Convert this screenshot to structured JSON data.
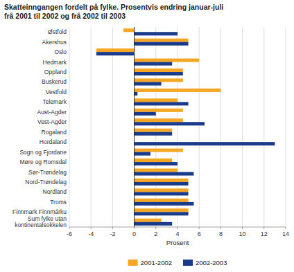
{
  "chart_data": {
    "type": "bar",
    "orientation": "horizontal",
    "title": "Skatteinngangen fordelt på fylke. Prosentvis endring januar-juli\nfrå 2001 til 2002 og frå 2002 til 2003",
    "x_label": "Prosent",
    "categories": [
      "Østfold",
      "Akershus",
      "Oslo",
      "Hedmark",
      "Oppland",
      "Buskerud",
      "Vestfold",
      "Telemark",
      "Aust-Agder",
      "Vest-Agder",
      "Rogaland",
      "Hordaland",
      "Sogn og Fjordane",
      "Møre og Romsdal",
      "Sør-Trøndelag",
      "Nord-Trøndelag",
      "Nordland",
      "Troms",
      "Finnmark Finnmárku",
      "Sum fylke utan\nkontinentalsokkelen"
    ],
    "series": [
      {
        "name": "2001-2002",
        "color": "#f5a623",
        "values": [
          -1.0,
          5.0,
          -3.5,
          6.0,
          4.5,
          4.5,
          8.0,
          4.0,
          4.5,
          4.5,
          3.5,
          0.0,
          4.5,
          3.5,
          4.0,
          5.0,
          5.0,
          5.0,
          5.0,
          2.5
        ]
      },
      {
        "name": "2002-2003",
        "color": "#1a3a8a",
        "values": [
          4.0,
          5.0,
          -3.5,
          3.5,
          4.5,
          2.5,
          0.3,
          5.0,
          2.0,
          6.5,
          3.5,
          13.0,
          1.5,
          4.0,
          5.5,
          5.0,
          5.0,
          5.5,
          5.0,
          3.5
        ]
      }
    ],
    "xlim": [
      -6,
      14
    ],
    "xticks": [
      -6,
      -4,
      -2,
      0,
      2,
      4,
      6,
      8,
      10,
      12,
      14
    ],
    "grid": true,
    "legend": "bottom"
  }
}
